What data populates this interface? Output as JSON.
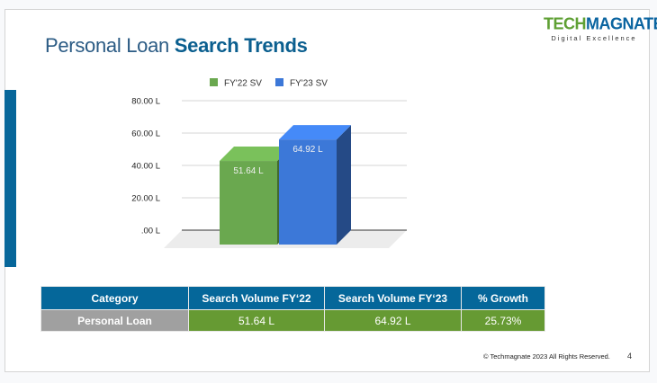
{
  "title": {
    "light": "Personal Loan",
    "bold": "Search Trends"
  },
  "logo": {
    "part1": "TECH",
    "part2": "MAGNATE",
    "reg": "®",
    "tagline": "Digital Excellence"
  },
  "chart_data": {
    "type": "bar",
    "style": "3d",
    "categories": [
      "Personal Loan"
    ],
    "series": [
      {
        "name": "FY'22 SV",
        "values": [
          51.64
        ],
        "color": "#6aa84f",
        "label": "51.64 L"
      },
      {
        "name": "FY'23 SV",
        "values": [
          64.92
        ],
        "color": "#3c78d8",
        "label": "64.92 L"
      }
    ],
    "yticks": [
      ".00 L",
      "20.00 L",
      "40.00 L",
      "60.00 L",
      "80.00 L"
    ],
    "ylim": [
      0,
      80
    ],
    "grid": true,
    "legend": "top"
  },
  "table": {
    "headers": [
      "Category",
      "Search Volume FY‘22",
      "Search Volume FY‘23",
      "% Growth"
    ],
    "rows": [
      [
        "Personal Loan",
        "51.64 L",
        "64.92 L",
        "25.73%"
      ]
    ]
  },
  "footer": {
    "copyright": "© Techmagnate 2023 All Rights Reserved.",
    "page": "4"
  }
}
